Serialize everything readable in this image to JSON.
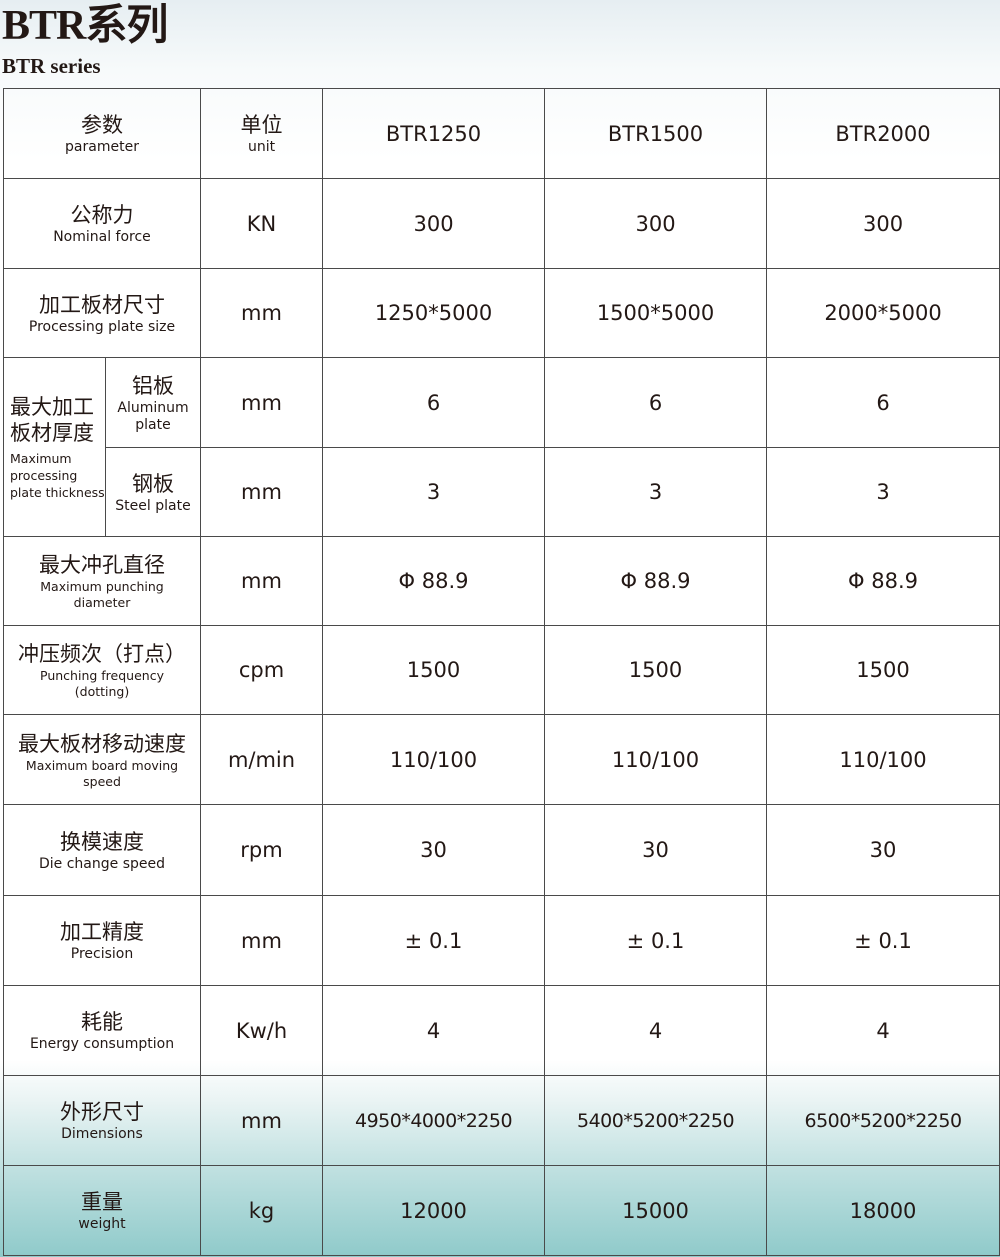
{
  "header": {
    "title": "BTR系列",
    "subtitle": "BTR series"
  },
  "table": {
    "head": {
      "param_zh": "参数",
      "param_en": "parameter",
      "unit_zh": "单位",
      "unit_en": "unit",
      "models": [
        "BTR1250",
        "BTR1500",
        "BTR2000"
      ]
    },
    "rows": [
      {
        "zh": "公称力",
        "en": "Nominal force",
        "unit": "KN",
        "values": [
          "300",
          "300",
          "300"
        ]
      },
      {
        "zh": "加工板材尺寸",
        "en": "Processing plate size",
        "unit": "mm",
        "values": [
          "1250*5000",
          "1500*5000",
          "2000*5000"
        ]
      },
      {
        "group_zh": "最大加工板材厚度",
        "group_en": "Maximum processing plate thickness",
        "sub_zh": "铝板",
        "sub_en": "Aluminum plate",
        "unit": "mm",
        "values": [
          "6",
          "6",
          "6"
        ]
      },
      {
        "sub_zh": "钢板",
        "sub_en": "Steel plate",
        "unit": "mm",
        "values": [
          "3",
          "3",
          "3"
        ]
      },
      {
        "zh": "最大冲孔直径",
        "en": "Maximum punching diameter",
        "unit": "mm",
        "values": [
          "Φ 88.9",
          "Φ 88.9",
          "Φ 88.9"
        ]
      },
      {
        "zh": "冲压频次（打点）",
        "en": "Punching frequency (dotting)",
        "unit": "cpm",
        "values": [
          "1500",
          "1500",
          "1500"
        ]
      },
      {
        "zh": "最大板材移动速度",
        "en": "Maximum board moving speed",
        "unit": "m/min",
        "values": [
          "110/100",
          "110/100",
          "110/100"
        ]
      },
      {
        "zh": "换模速度",
        "en": "Die change speed",
        "unit": "rpm",
        "values": [
          "30",
          "30",
          "30"
        ]
      },
      {
        "zh": "加工精度",
        "en": "Precision",
        "unit": "mm",
        "values": [
          "± 0.1",
          "± 0.1",
          "± 0.1"
        ]
      },
      {
        "zh": "耗能",
        "en": "Energy consumption",
        "unit": "Kw/h",
        "values": [
          "4",
          "4",
          "4"
        ]
      },
      {
        "zh": "外形尺寸",
        "en": "Dimensions",
        "unit": "mm",
        "values": [
          "4950*4000*2250",
          "5400*5200*2250",
          "6500*5200*2250"
        ]
      },
      {
        "zh": "重量",
        "en": "weight",
        "unit": "kg",
        "values": [
          "12000",
          "15000",
          "18000"
        ]
      }
    ]
  }
}
